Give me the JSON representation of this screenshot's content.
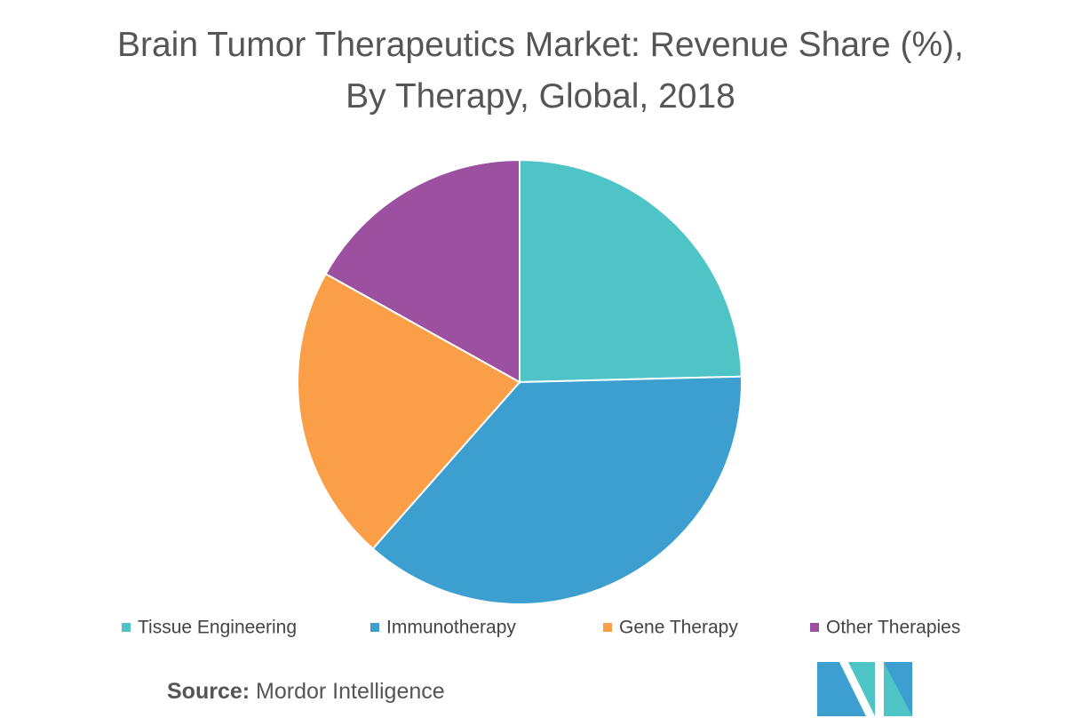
{
  "chart_data": {
    "type": "pie",
    "title": "Brain Tumor Therapeutics Market: Revenue Share (%), By Therapy, Global, 2018",
    "categories": [
      "Tissue Engineering",
      "Immunotherapy",
      "Gene Therapy",
      "Other Therapies"
    ],
    "values": [
      24.6,
      36.9,
      21.6,
      16.9
    ],
    "colors": [
      "#4fc4c6",
      "#3d9fd0",
      "#fa9f47",
      "#9b51a0"
    ],
    "source_label": "Source:",
    "source": "Mordor Intelligence"
  }
}
